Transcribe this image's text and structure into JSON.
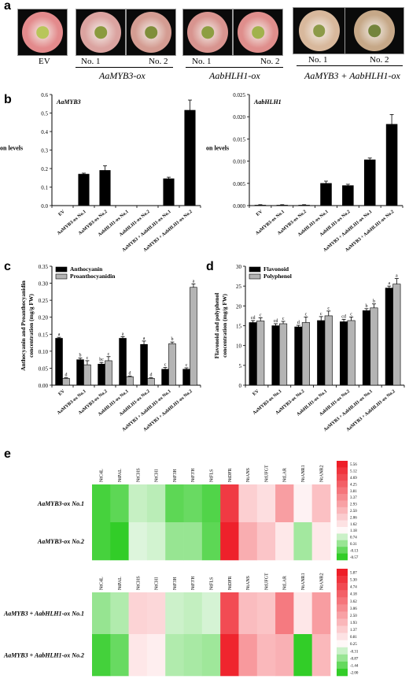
{
  "panel_labels": {
    "a": "a",
    "b": "b",
    "c": "c",
    "d": "d",
    "e": "e"
  },
  "photos": {
    "items": [
      {
        "caption": "EV",
        "petal": "#e38a8c",
        "center": "#b8c65a"
      },
      {
        "caption": "No. 1",
        "petal": "#dba3a0",
        "center": "#8a9a3e"
      },
      {
        "caption": "No. 2",
        "petal": "#d49c92",
        "center": "#7f8e3a"
      },
      {
        "caption": "No. 1",
        "petal": "#d8948f",
        "center": "#8d9e42"
      },
      {
        "caption": "No. 2",
        "petal": "#df8e8c",
        "center": "#a1b24c"
      },
      {
        "caption": "No. 1",
        "petal": "#d8b89c",
        "center": "#8c9a48"
      },
      {
        "caption": "No. 2",
        "petal": "#c6a888",
        "center": "#74843c"
      }
    ],
    "groups": {
      "myb": "AaMYB3-ox",
      "bhlh": "AabHLH1-ox",
      "both": "AaMYB3 + AabHLH1-ox"
    }
  },
  "chart_data": [
    {
      "id": "b1",
      "type": "bar",
      "title": "AaMYB3",
      "ylabel": "Expression levels",
      "categories": [
        "EV",
        "AaMYB3-ox No.1",
        "AaMYB3-ox No.2",
        "AabHLH1-ox No.1",
        "AabHLH1-ox No.2",
        "AaMYB3 + AabHLH1-ox No.1",
        "AaMYB3 + AabHLH1-ox No.2"
      ],
      "values": [
        0,
        0.17,
        0.19,
        0,
        0,
        0.145,
        0.515
      ],
      "errors": [
        0,
        0.005,
        0.025,
        0,
        0,
        0.008,
        0.055
      ],
      "ylim": [
        0,
        0.6
      ],
      "yticks": [
        "0.0",
        "0.1",
        "0.2",
        "0.3",
        "0.4",
        "0.5",
        "0.6"
      ]
    },
    {
      "id": "b2",
      "type": "bar",
      "title": "AabHLH1",
      "ylabel": "Expression levels",
      "categories": [
        "EV",
        "AaMYB3-ox No.1",
        "AaMYB3-ox No.2",
        "AabHLH1-ox No.1",
        "AabHLH1-ox No.2",
        "AaMYB3 + AabHLH1-ox No.1",
        "AaMYB3 + AabHLH1-ox No.2"
      ],
      "values": [
        0.0001,
        0.0001,
        0.0001,
        0.005,
        0.0045,
        0.0103,
        0.0183
      ],
      "errors": [
        0.0001,
        0.0001,
        0.0001,
        0.0005,
        0.0003,
        0.0004,
        0.0022
      ],
      "ylim": [
        0,
        0.025
      ],
      "yticks": [
        "0.000",
        "0.005",
        "0.010",
        "0.015",
        "0.020",
        "0.025"
      ]
    },
    {
      "id": "c",
      "type": "bar",
      "ylabel": "Anthocyanin and Proanthocyanidin concentration (mg/g FW)",
      "categories": [
        "EV",
        "AaMYB3-ox No.1",
        "AaMYB3-ox No.2",
        "AabHLH1-ox No.1",
        "AabHLH1-ox No.2",
        "AaMYB3 + AabHLH1-ox No.1",
        "AaMYB3 + AabHLH1-ox No.2"
      ],
      "series": [
        {
          "name": "Anthocyanin",
          "color": "#000000",
          "values": [
            0.138,
            0.075,
            0.062,
            0.138,
            0.12,
            0.047,
            0.047
          ],
          "errors": [
            0.003,
            0.005,
            0.005,
            0.005,
            0.01,
            0.005,
            0.004
          ],
          "letters": [
            "a",
            "b",
            "bc",
            "a",
            "a",
            "c",
            "c"
          ]
        },
        {
          "name": "Proanthocyanidin",
          "color": "#b4b4b4",
          "values": [
            0.02,
            0.06,
            0.072,
            0.025,
            0.02,
            0.122,
            0.288
          ],
          "errors": [
            0.002,
            0.012,
            0.012,
            0.002,
            0.002,
            0.005,
            0.01
          ],
          "letters": [
            "d",
            "c",
            "c",
            "d",
            "d",
            "b",
            "a"
          ]
        }
      ],
      "ylim": [
        0,
        0.35
      ],
      "yticks": [
        "0.00",
        "0.05",
        "0.10",
        "0.15",
        "0.20",
        "0.25",
        "0.30",
        "0.35"
      ],
      "legend": "top-left"
    },
    {
      "id": "d",
      "type": "bar",
      "ylabel": "Flavonoid and polyphenol concentration (mg/g FW)",
      "categories": [
        "EV",
        "AaMYB3-ox No.1",
        "AaMYB3-ox No.2",
        "AabHLH1-ox No.1",
        "AabHLH1-ox No.2",
        "AaMYB3 + AabHLH1-ox No.1",
        "AaMYB3 + AabHLH1-ox No.2"
      ],
      "series": [
        {
          "name": "Flavonoid",
          "color": "#000000",
          "values": [
            15.8,
            15,
            14.7,
            16.3,
            16,
            18.8,
            24.5
          ],
          "errors": [
            0.5,
            0.5,
            0.4,
            1,
            0.6,
            0.5,
            0.5
          ],
          "letters": [
            "cd",
            "cd",
            "d",
            "c",
            "cd",
            "b",
            "a"
          ]
        },
        {
          "name": "Polyphenol",
          "color": "#b4b4b4",
          "values": [
            16.2,
            15.5,
            15.8,
            17.5,
            16.3,
            19.5,
            25.5
          ],
          "errors": [
            0.8,
            0.6,
            1.4,
            1.2,
            0.9,
            1.0,
            1.4
          ],
          "letters": [
            "c",
            "c",
            "c",
            "c",
            "c",
            "b",
            "a"
          ]
        }
      ],
      "ylim": [
        0,
        30
      ],
      "yticks": [
        "0",
        "5",
        "10",
        "15",
        "20",
        "25",
        "30"
      ],
      "legend": "top-left"
    },
    {
      "id": "e1",
      "type": "heatmap",
      "columns": [
        "NtC4L",
        "NtPAL",
        "NtCHS",
        "NtCHI",
        "NtF3H",
        "NtF3'H",
        "NtFLS",
        "NtDFR",
        "NtANS",
        "NtUFGT",
        "NtLAR",
        "NtANR1",
        "NtANR2"
      ],
      "rows": [
        "AaMYB3-ox No.1",
        "AaMYB3-ox No.2"
      ],
      "values": [
        [
          -0.4,
          -0.2,
          0.7,
          0.6,
          -0.2,
          -0.1,
          -0.3,
          5.0,
          2.0,
          1.7,
          3.0,
          1.3,
          2.3
        ],
        [
          -0.4,
          -0.6,
          0.9,
          0.8,
          0.3,
          0.3,
          -0.2,
          5.5,
          2.7,
          2.2,
          1.5,
          0.4,
          1.5
        ]
      ],
      "colorbar": [
        "5.56",
        "5.12",
        "4.69",
        "4.25",
        "3.81",
        "3.37",
        "2.93",
        "2.50",
        "2.06",
        "1.62",
        "1.18",
        "0.74",
        "0.31",
        "-0.13",
        "-0.57"
      ]
    },
    {
      "id": "e2",
      "type": "heatmap",
      "columns": [
        "NtC4L",
        "NtPAL",
        "NtCHS",
        "NtCHI",
        "NtF3H",
        "NtF3'H",
        "NtFLS",
        "NtDFR",
        "NtANS",
        "NtUFGT",
        "NtLAR",
        "NtANR1",
        "NtANR2"
      ],
      "rows": [
        "AaMYB3 + AabHLH1-ox No.1",
        "AaMYB3 + AabHLH1-ox No.2"
      ],
      "values": [
        [
          -0.9,
          -0.6,
          1.2,
          1.1,
          -0.3,
          -0.4,
          -0.2,
          4.7,
          1.8,
          1.6,
          3.5,
          0.7,
          2.6
        ],
        [
          -1.8,
          -1.4,
          0.7,
          0.5,
          -0.6,
          -0.7,
          -0.8,
          5.7,
          2.7,
          1.9,
          2.1,
          -2.0,
          1.9
        ]
      ],
      "colorbar": [
        "5.87",
        "5.30",
        "4.74",
        "4.18",
        "3.62",
        "3.06",
        "2.50",
        "1.93",
        "1.37",
        "0.81",
        "0.25",
        "-0.31",
        "-0.87",
        "-1.44",
        "-2.00"
      ]
    }
  ]
}
